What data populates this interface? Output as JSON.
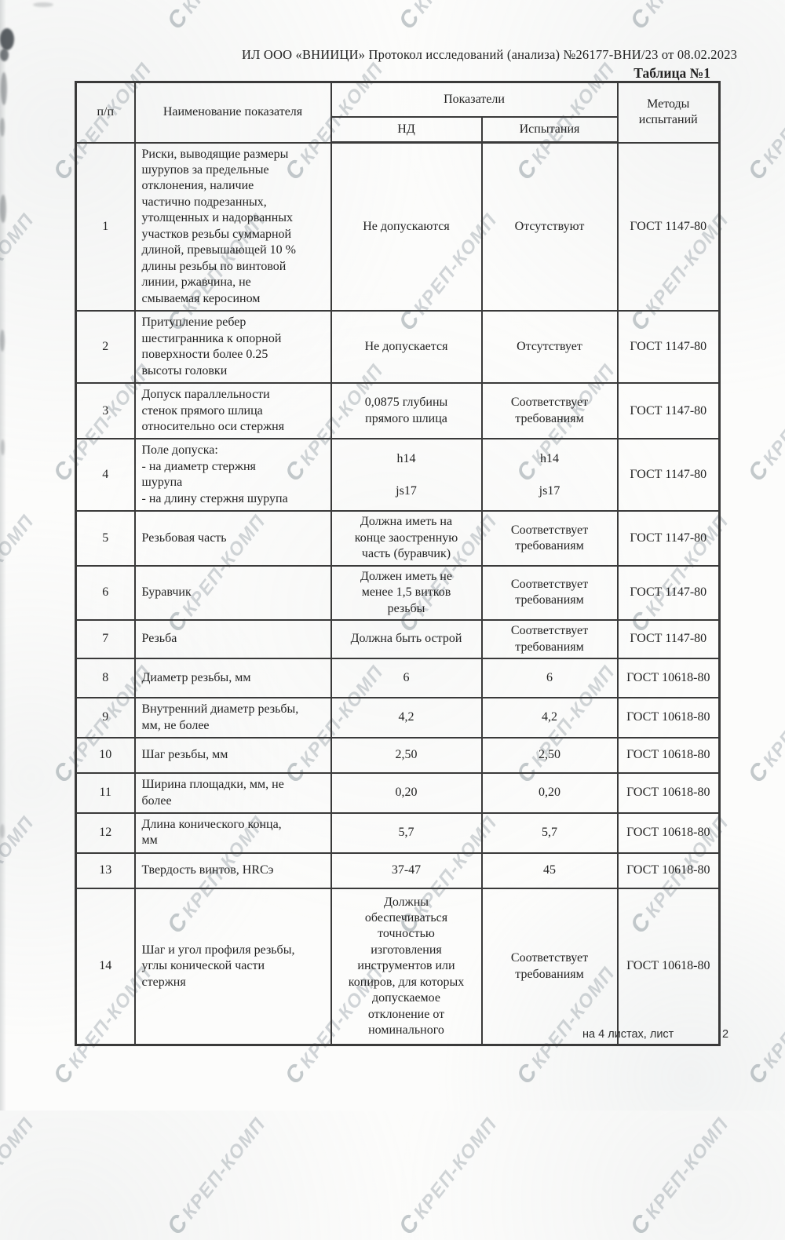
{
  "doc": {
    "header_line": "ИЛ ООО «ВНИИЦИ»  Протокол исследований (анализа)  №26177-ВНИ/23 от  08.02.2023",
    "table_caption": "Таблица №1",
    "footer": {
      "sheets_label": "на 4  листах, лист",
      "page_number": "2"
    }
  },
  "watermark": {
    "logo": "С",
    "text": "КРЕП-КОМП"
  },
  "table": {
    "headers": {
      "num": "п/п",
      "name": "Наименование показателя",
      "group": "Показатели",
      "nd": "НД",
      "test": "Испытания",
      "method": "Методы\nиспытаний"
    },
    "rows": [
      {
        "num": "1",
        "name": "Риски, выводящие размеры\nшурупов за предельные\nотклонения, наличие\nчастично подрезанных,\nутолщенных и надорванных\nучастков резьбы суммарной\nдлиной, превышающей 10 %\nдлины резьбы по винтовой\nлинии, ржавчина, не\nсмываемая керосином",
        "nd": "Не допускаются",
        "test": "Отсутствуют",
        "method": "ГОСТ 1147-80"
      },
      {
        "num": "2",
        "name": "Притупление ребер\nшестигранника к опорной\nповерхности более 0.25\nвысоты головки",
        "nd": "Не допускается",
        "test": "Отсутствует",
        "method": "ГОСТ 1147-80"
      },
      {
        "num": "3",
        "name": "Допуск параллельности\nстенок прямого шлица\nотносительно оси стержня",
        "nd": "0,0875 глубины\nпрямого шлица",
        "test": "Соответствует\nтребованиям",
        "method": "ГОСТ 1147-80"
      },
      {
        "num": "4",
        "name": "Поле допуска:\n- на диаметр стержня\nшурупа\n- на длину стержня шурупа",
        "nd": "h14\n\njs17",
        "test": "h14\n\njs17",
        "method": "ГОСТ 1147-80"
      },
      {
        "num": "5",
        "name": "Резьбовая часть",
        "nd": "Должна иметь на\nконце заостренную\nчасть (буравчик)",
        "test": "Соответствует\nтребованиям",
        "method": "ГОСТ 1147-80"
      },
      {
        "num": "6",
        "name": "Буравчик",
        "nd": "Должен иметь не\nменее 1,5 витков\nрезьбы",
        "test": "Соответствует\nтребованиям",
        "method": "ГОСТ 1147-80"
      },
      {
        "num": "7",
        "name": "Резьба",
        "nd": "Должна быть острой",
        "test": "Соответствует\nтребованиям",
        "method": "ГОСТ 1147-80"
      },
      {
        "num": "8",
        "name": "Диаметр резьбы, мм",
        "nd": "6",
        "test": "6",
        "method": "ГОСТ 10618-80"
      },
      {
        "num": "9",
        "name": "Внутренний диаметр резьбы,\nмм, не более",
        "nd": "4,2",
        "test": "4,2",
        "method": "ГОСТ 10618-80"
      },
      {
        "num": "10",
        "name": "Шаг резьбы, мм",
        "nd": "2,50",
        "test": "2,50",
        "method": "ГОСТ 10618-80"
      },
      {
        "num": "11",
        "name": "Ширина площадки, мм, не\nболее",
        "nd": "0,20",
        "test": "0,20",
        "method": "ГОСТ 10618-80"
      },
      {
        "num": "12",
        "name": "Длина конического конца,\nмм",
        "nd": "5,7",
        "test": "5,7",
        "method": "ГОСТ 10618-80"
      },
      {
        "num": "13",
        "name": "Твердость винтов, HRCэ",
        "nd": "37-47",
        "test": "45",
        "method": "ГОСТ 10618-80"
      },
      {
        "num": "14",
        "name": "Шаг и угол профиля резьбы,\nуглы конической части\nстержня",
        "nd": "Должны\nобеспечиваться\nточностью\nизготовления\nинструментов или\nкопиров, для которых\nдопускаемое\nотклонение от\nноминального",
        "test": "Соответствует\nтребованиям",
        "method": "ГОСТ 10618-80"
      }
    ]
  }
}
